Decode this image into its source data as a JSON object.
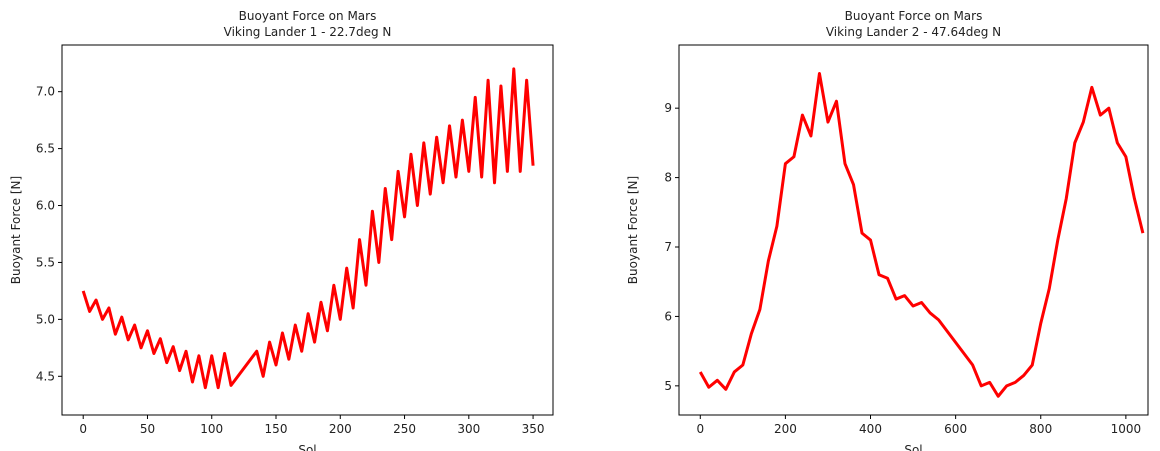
{
  "chart_data": [
    {
      "type": "line",
      "title": "Buoyant Force on Mars",
      "subtitle": "Viking Lander 1 - 22.7deg N",
      "xlabel": "Sol",
      "ylabel": "Buoyant Force [N]",
      "x": [
        0,
        5,
        10,
        15,
        20,
        25,
        30,
        35,
        40,
        45,
        50,
        55,
        60,
        65,
        70,
        75,
        80,
        85,
        90,
        95,
        100,
        105,
        110,
        115,
        135,
        140,
        145,
        150,
        155,
        160,
        165,
        170,
        175,
        180,
        185,
        190,
        195,
        200,
        205,
        210,
        215,
        220,
        225,
        230,
        235,
        240,
        245,
        250,
        255,
        260,
        265,
        270,
        275,
        280,
        285,
        290,
        295,
        300,
        305,
        310,
        315,
        320,
        325,
        330,
        335,
        340,
        345,
        350
      ],
      "series": [
        {
          "name": "Viking Lander 1",
          "color": "#ff0000",
          "values": [
            5.25,
            5.07,
            5.17,
            5.0,
            5.1,
            4.87,
            5.02,
            4.82,
            4.95,
            4.75,
            4.9,
            4.7,
            4.83,
            4.62,
            4.76,
            4.55,
            4.72,
            4.45,
            4.68,
            4.4,
            4.68,
            4.4,
            4.7,
            4.42,
            4.72,
            4.5,
            4.8,
            4.6,
            4.88,
            4.65,
            4.95,
            4.72,
            5.05,
            4.8,
            5.15,
            4.9,
            5.3,
            5.0,
            5.45,
            5.1,
            5.7,
            5.3,
            5.95,
            5.5,
            6.15,
            5.7,
            6.3,
            5.9,
            6.45,
            6.0,
            6.55,
            6.1,
            6.6,
            6.2,
            6.7,
            6.25,
            6.75,
            6.3,
            6.95,
            6.25,
            7.1,
            6.2,
            7.05,
            6.3,
            7.2,
            6.3,
            7.1,
            6.35
          ]
        }
      ],
      "xlim": [
        -16.5,
        365.5
      ],
      "xticks": [
        0,
        50,
        100,
        150,
        200,
        250,
        300,
        350
      ],
      "ylim": [
        4.16,
        7.41
      ],
      "yticks": [
        {
          "value": 4.5,
          "label": "4.5"
        },
        {
          "value": 5,
          "label": "5.0"
        },
        {
          "value": 5.5,
          "label": "5.5"
        },
        {
          "value": 6,
          "label": "6.0"
        },
        {
          "value": 6.5,
          "label": "6.5"
        },
        {
          "value": 7,
          "label": "7.0"
        }
      ]
    },
    {
      "type": "line",
      "title": "Buoyant Force on Mars",
      "subtitle": "Viking Lander 2 - 47.64deg N",
      "xlabel": "Sol",
      "ylabel": "Buoyant Force [N]",
      "x": [
        0,
        20,
        40,
        60,
        80,
        100,
        120,
        140,
        160,
        180,
        200,
        220,
        240,
        260,
        280,
        300,
        320,
        340,
        360,
        380,
        400,
        420,
        440,
        460,
        480,
        500,
        520,
        540,
        560,
        640,
        660,
        680,
        700,
        720,
        740,
        760,
        780,
        800,
        820,
        840,
        860,
        880,
        900,
        920,
        940,
        960,
        980,
        1000,
        1020,
        1040
      ],
      "series": [
        {
          "name": "Viking Lander 2",
          "color": "#ff0000",
          "values": [
            5.2,
            4.98,
            5.08,
            4.95,
            5.2,
            5.3,
            5.75,
            6.1,
            6.8,
            7.3,
            8.2,
            8.3,
            8.9,
            8.6,
            9.5,
            8.8,
            9.1,
            8.2,
            7.9,
            7.2,
            7.1,
            6.6,
            6.55,
            6.25,
            6.3,
            6.15,
            6.2,
            6.05,
            5.95,
            5.3,
            5.0,
            5.05,
            4.85,
            5.0,
            5.05,
            5.15,
            5.3,
            5.9,
            6.4,
            7.1,
            7.7,
            8.5,
            8.8,
            9.3,
            8.9,
            9.0,
            8.5,
            8.3,
            7.7,
            7.2
          ]
        }
      ],
      "xlim": [
        -50,
        1052
      ],
      "xticks": [
        0,
        200,
        400,
        600,
        800,
        1000
      ],
      "ylim": [
        4.58,
        9.91
      ],
      "yticks": [
        5,
        6,
        7,
        8,
        9
      ]
    }
  ]
}
